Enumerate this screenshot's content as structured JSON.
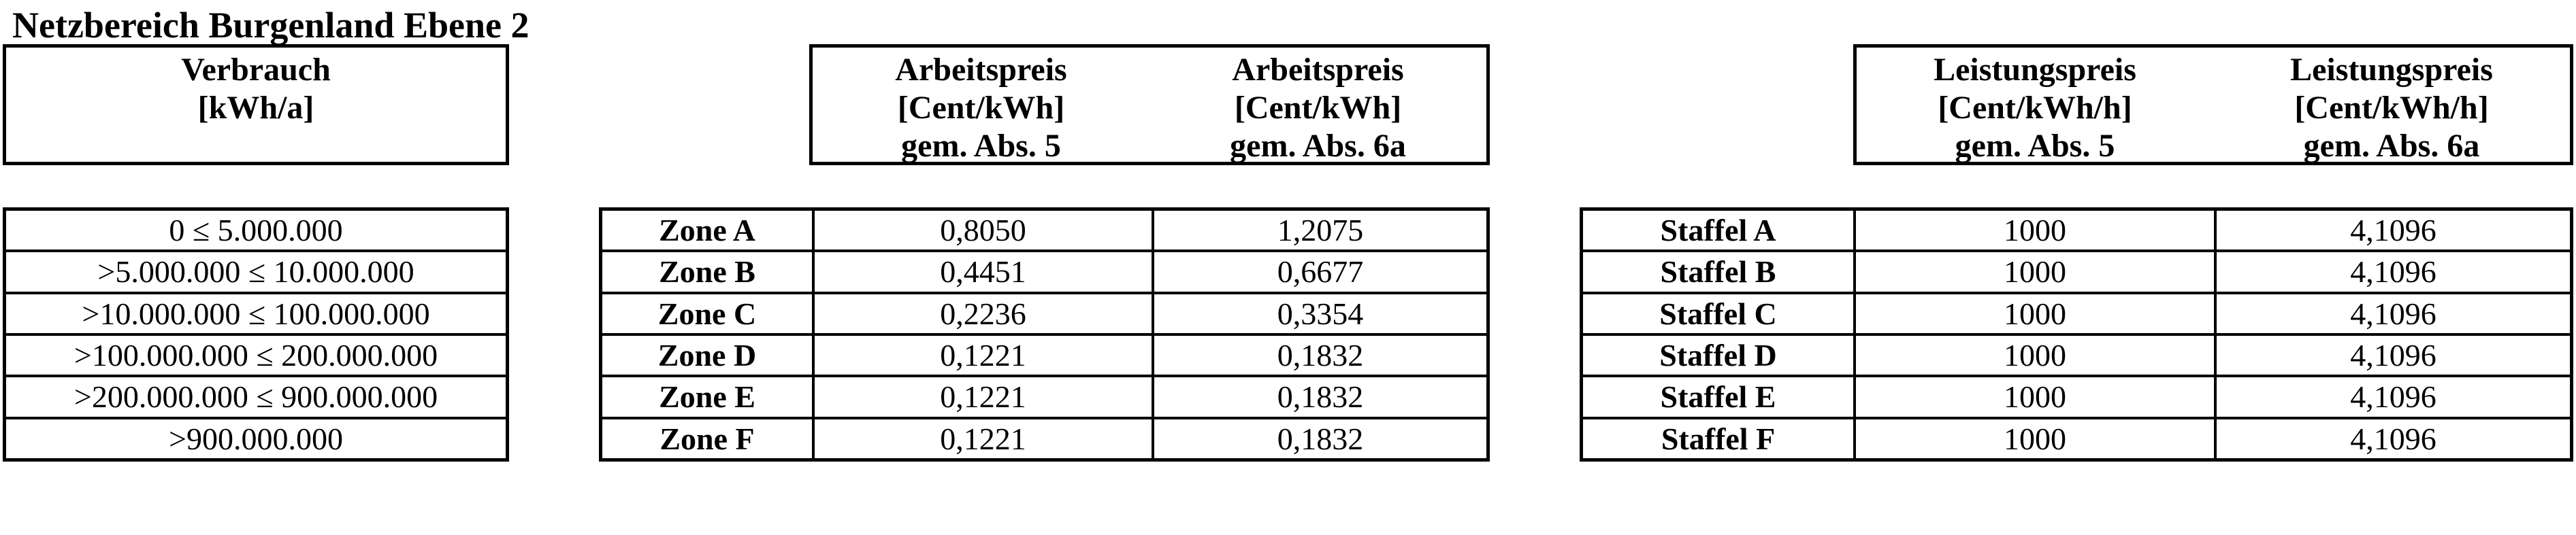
{
  "title": "Netzbereich Burgenland Ebene 2",
  "verbrauch": {
    "header": {
      "line1": "Verbrauch",
      "line2": "[kWh/a]"
    },
    "rows": [
      "0 ≤ 5.000.000",
      ">5.000.000 ≤ 10.000.000",
      ">10.000.000 ≤ 100.000.000",
      ">100.000.000 ≤ 200.000.000",
      ">200.000.000 ≤ 900.000.000",
      ">900.000.000"
    ]
  },
  "arbeitspreis": {
    "headers": [
      {
        "line1": "Arbeitspreis",
        "line2": "[Cent/kWh]",
        "line3": "gem. Abs. 5"
      },
      {
        "line1": "Arbeitspreis",
        "line2": "[Cent/kWh]",
        "line3": "gem. Abs. 6a"
      }
    ],
    "rows": [
      {
        "label": "Zone A",
        "abs5": "0,8050",
        "abs6a": "1,2075"
      },
      {
        "label": "Zone B",
        "abs5": "0,4451",
        "abs6a": "0,6677"
      },
      {
        "label": "Zone C",
        "abs5": "0,2236",
        "abs6a": "0,3354"
      },
      {
        "label": "Zone D",
        "abs5": "0,1221",
        "abs6a": "0,1832"
      },
      {
        "label": "Zone E",
        "abs5": "0,1221",
        "abs6a": "0,1832"
      },
      {
        "label": "Zone F",
        "abs5": "0,1221",
        "abs6a": "0,1832"
      }
    ]
  },
  "leistungspreis": {
    "headers": [
      {
        "line1": "Leistungspreis",
        "line2": "[Cent/kWh/h]",
        "line3": "gem. Abs. 5"
      },
      {
        "line1": "Leistungspreis",
        "line2": "[Cent/kWh/h]",
        "line3": "gem. Abs. 6a"
      }
    ],
    "rows": [
      {
        "label": "Staffel A",
        "abs5": "1000",
        "abs6a": "4,1096"
      },
      {
        "label": "Staffel B",
        "abs5": "1000",
        "abs6a": "4,1096"
      },
      {
        "label": "Staffel C",
        "abs5": "1000",
        "abs6a": "4,1096"
      },
      {
        "label": "Staffel D",
        "abs5": "1000",
        "abs6a": "4,1096"
      },
      {
        "label": "Staffel E",
        "abs5": "1000",
        "abs6a": "4,1096"
      },
      {
        "label": "Staffel F",
        "abs5": "1000",
        "abs6a": "4,1096"
      }
    ]
  },
  "colors": {
    "text": "#000000",
    "background": "#ffffff",
    "border": "#000000"
  }
}
